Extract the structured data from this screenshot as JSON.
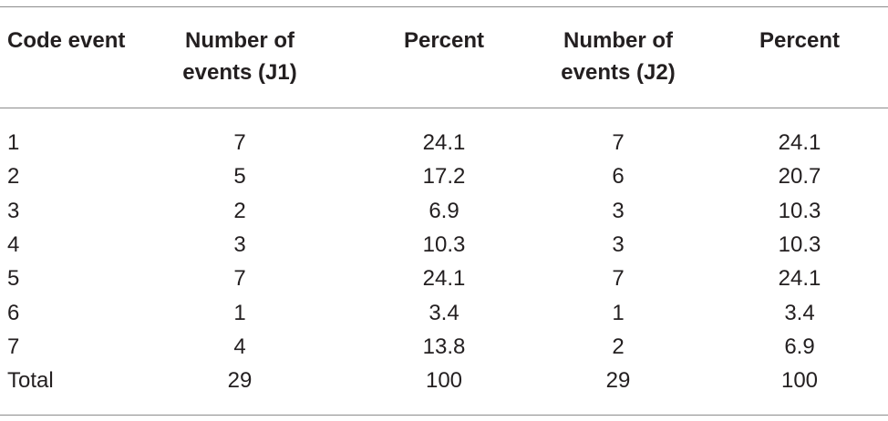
{
  "table": {
    "header": [
      [
        "Code event"
      ],
      [
        "Number of",
        "events (J1)"
      ],
      [
        "Percent"
      ],
      [
        "Number of",
        "events (J2)"
      ],
      [
        "Percent"
      ]
    ],
    "rows": [
      [
        1,
        7,
        24.1,
        7,
        24.1
      ],
      [
        2,
        5,
        17.2,
        6,
        20.7
      ],
      [
        3,
        2,
        6.9,
        3,
        10.3
      ],
      [
        4,
        3,
        10.3,
        3,
        10.3
      ],
      [
        5,
        7,
        24.1,
        7,
        24.1
      ],
      [
        6,
        1,
        3.4,
        1,
        3.4
      ],
      [
        7,
        4,
        13.8,
        2,
        6.9
      ],
      [
        "Total",
        29,
        100,
        29,
        100
      ]
    ]
  }
}
